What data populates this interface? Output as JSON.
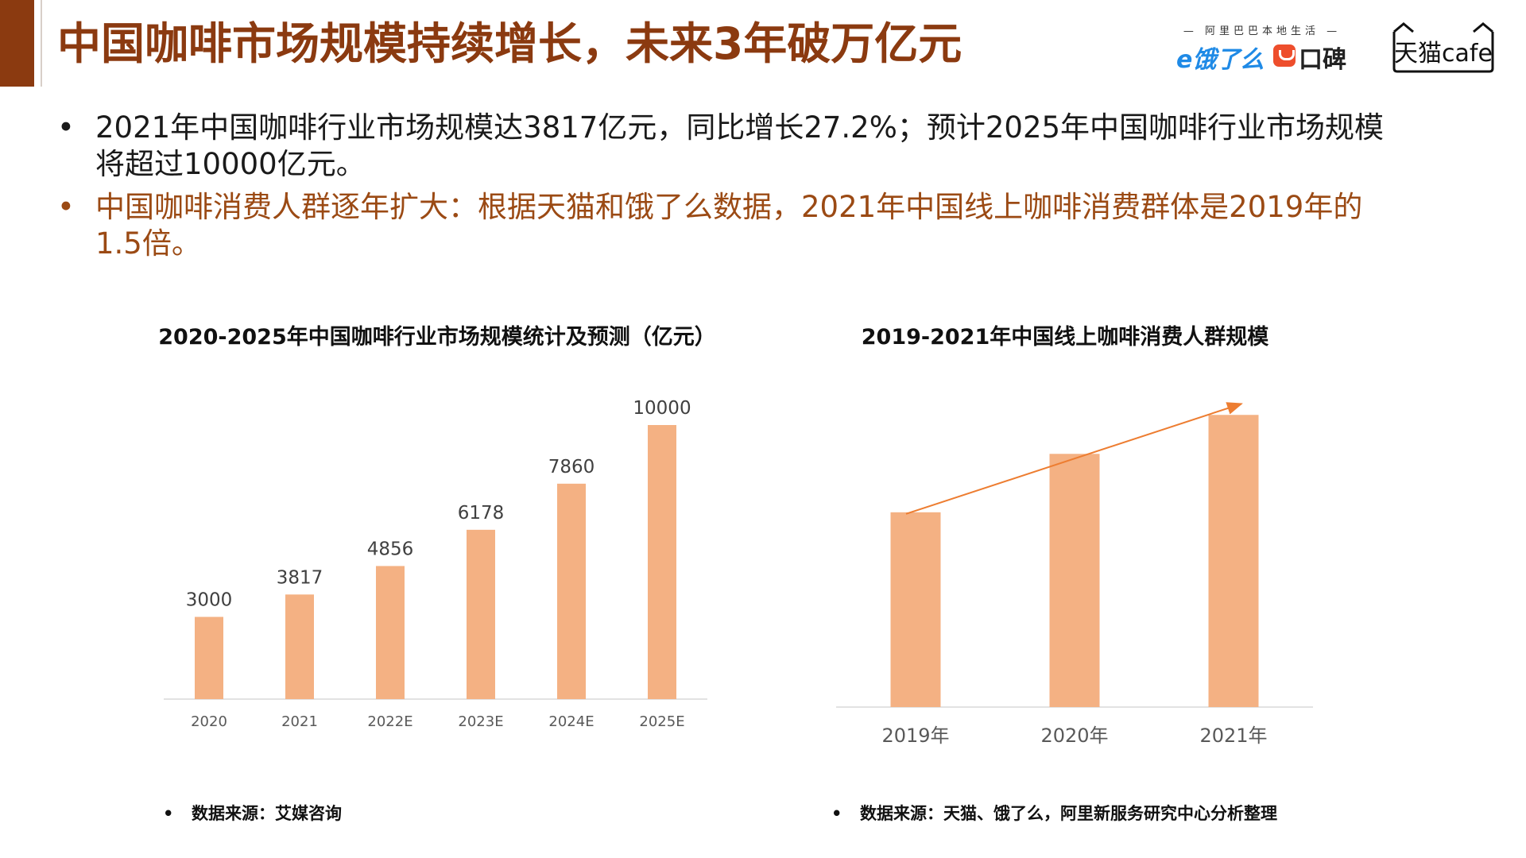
{
  "title": "中国咖啡市场规模持续增长，未来3年破万亿元",
  "colors": {
    "accent": "#8b3a10",
    "title": "#8b3a10",
    "bar": "#f4b183",
    "trend_line": "#ed7d31",
    "axis": "#d9d9d9",
    "tick": "#595959"
  },
  "logos": {
    "alibaba_caption": "阿里巴巴本地生活",
    "ele": "饿了么",
    "koubei": "口碑",
    "tmall": "天猫cafe"
  },
  "bullets": [
    {
      "marker": "•",
      "text": "2021年中国咖啡行业市场规模达3817亿元，同比增长27.2%；预计2025年中国咖啡行业市场规模将超过10000亿元。"
    },
    {
      "marker": "•",
      "text": "中国咖啡消费人群逐年扩大：根据天猫和饿了么数据，2021年中国线上咖啡消费群体是2019年的1.5倍。"
    }
  ],
  "chart_data": [
    {
      "type": "bar",
      "title": "2020-2025年中国咖啡行业市场规模统计及预测（亿元）",
      "categories": [
        "2020",
        "2021",
        "2022E",
        "2023E",
        "2024E",
        "2025E"
      ],
      "values": [
        3000,
        3817,
        4856,
        6178,
        7860,
        10000
      ],
      "data_labels": [
        "3000",
        "3817",
        "4856",
        "6178",
        "7860",
        "10000"
      ],
      "ylim": [
        0,
        10000
      ],
      "grid": false,
      "source": "数据来源：艾媒咨询"
    },
    {
      "type": "bar",
      "title": "2019-2021年中国线上咖啡消费人群规模",
      "categories": [
        "2019年",
        "2020年",
        "2021年"
      ],
      "values": [
        1.0,
        1.3,
        1.5
      ],
      "ylim": [
        0,
        1.55
      ],
      "trend_arrow": true,
      "grid": false,
      "source": "数据来源：天猫、饿了么，阿里新服务研究中心分析整理"
    }
  ]
}
